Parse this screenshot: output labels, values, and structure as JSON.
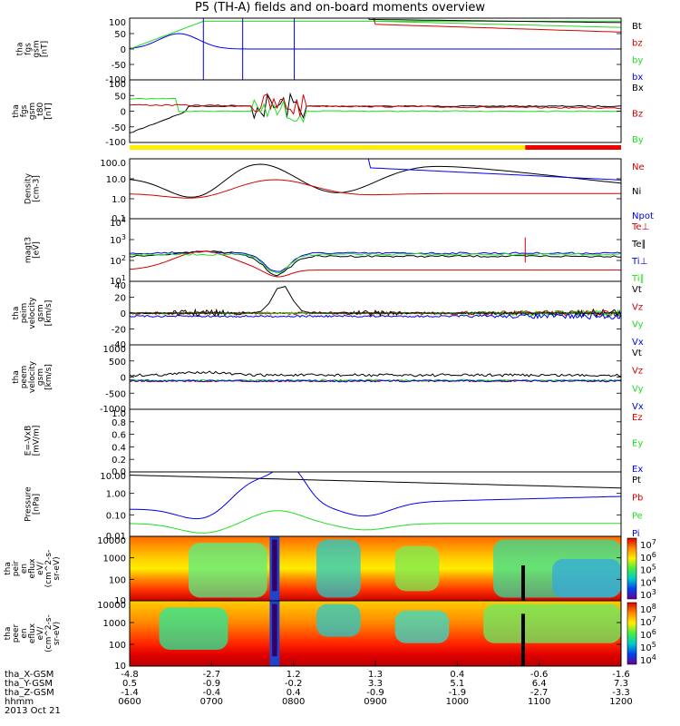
{
  "title": "P5 (TH-A) fields and on-board moments overview",
  "colors": {
    "black": "#000000",
    "red": "#d40000",
    "green": "#22dd22",
    "blue": "#0000ee",
    "yellow": "#ffee00",
    "bar_red": "#ee0000"
  },
  "chart_data": {
    "type": "line",
    "time_ticks": [
      "0600",
      "0700",
      "0800",
      "0900",
      "1000",
      "1100",
      "1200"
    ],
    "time_range": [
      "0600",
      "1200"
    ],
    "date": "2013 Oct 21",
    "footer": {
      "rows": [
        {
          "label": "tha_X-GSM",
          "values": [
            "-4.8",
            "-2.7",
            "1.2",
            "1.3",
            "0.4",
            "-0.6",
            "-1.6"
          ]
        },
        {
          "label": "tha_Y-GSM",
          "values": [
            "0.5",
            "-0.9",
            "-0.2",
            "3.3",
            "5.1",
            "6.4",
            "7.3"
          ]
        },
        {
          "label": "tha_Z-GSM",
          "values": [
            "-1.4",
            "-0.4",
            "0.4",
            "-0.9",
            "-1.9",
            "-2.7",
            "-3.3"
          ]
        },
        {
          "label": "hhmm",
          "values": [
            "0600",
            "0700",
            "0800",
            "0900",
            "1000",
            "1100",
            "1200"
          ]
        }
      ],
      "date_label": "2013 Oct 21"
    },
    "panels": [
      {
        "id": "fgs",
        "ylabel": [
          "tha",
          "fgs",
          "gsm",
          "[nT]"
        ],
        "ylim": [
          -100,
          100
        ],
        "yticks": [
          "100",
          "50",
          "0",
          "-50",
          "-100"
        ],
        "legend": [
          {
            "name": "Bt",
            "color": "black"
          },
          {
            "name": "bz",
            "color": "red"
          },
          {
            "name": "by",
            "color": "green"
          },
          {
            "name": "bx",
            "color": "blue"
          }
        ]
      },
      {
        "id": "fgs_mgse",
        "ylabel": [
          "tha",
          "fgs",
          "gsm",
          "_t80",
          "[nT]"
        ],
        "ylim": [
          -100,
          100
        ],
        "yticks": [
          "100",
          "50",
          "0",
          "-50",
          "-100"
        ],
        "legend": [
          {
            "name": "Bx",
            "color": "black"
          },
          {
            "name": "Bz",
            "color": "red"
          },
          {
            "name": "By",
            "color": "green"
          }
        ]
      },
      {
        "id": "density",
        "ylabel": [
          "Density",
          "[cm-3]"
        ],
        "scale": "log",
        "yticks": [
          "100.0",
          "10.0",
          "1.0",
          "0.1"
        ],
        "legend": [
          {
            "name": "Ne",
            "color": "red"
          },
          {
            "name": "Ni",
            "color": "black"
          },
          {
            "name": "Npot",
            "color": "blue"
          }
        ]
      },
      {
        "id": "temp",
        "ylabel": [
          "magt3",
          "[eV]"
        ],
        "scale": "log",
        "yticks": [
          "10^4",
          "10^3",
          "10^2",
          "10^1"
        ],
        "legend": [
          {
            "name": "Te⊥",
            "color": "red"
          },
          {
            "name": "Te∥",
            "color": "black"
          },
          {
            "name": "Ti⊥",
            "color": "blue"
          },
          {
            "name": "Ti∥",
            "color": "green"
          }
        ]
      },
      {
        "id": "peim",
        "ylabel": [
          "tha",
          "peim",
          "velocity",
          "gsm",
          "[km/s]"
        ],
        "ylim": [
          -40,
          40
        ],
        "yticks": [
          "40",
          "20",
          "0",
          "-20",
          "-40"
        ],
        "legend": [
          {
            "name": "Vt",
            "color": "black"
          },
          {
            "name": "Vz",
            "color": "red"
          },
          {
            "name": "Vy",
            "color": "green"
          },
          {
            "name": "Vx",
            "color": "blue"
          }
        ]
      },
      {
        "id": "peem",
        "ylabel": [
          "tha",
          "peem",
          "velocity",
          "gsm",
          "[km/s]"
        ],
        "ylim": [
          -1000,
          1000
        ],
        "yticks": [
          "1000",
          "500",
          "0",
          "-500",
          "-1000"
        ],
        "legend": [
          {
            "name": "Vt",
            "color": "black"
          },
          {
            "name": "Vz",
            "color": "red"
          },
          {
            "name": "Vy",
            "color": "green"
          },
          {
            "name": "Vx",
            "color": "blue"
          }
        ]
      },
      {
        "id": "efield",
        "ylabel": [
          "E=-VxB",
          "[mV/m]"
        ],
        "ylim": [
          0,
          1
        ],
        "yticks": [
          "1.0",
          "0.8",
          "0.6",
          "0.4",
          "0.2",
          "0.0"
        ],
        "legend": [
          {
            "name": "Ez",
            "color": "red"
          },
          {
            "name": "Ey",
            "color": "green"
          },
          {
            "name": "Ex",
            "color": "blue"
          }
        ]
      },
      {
        "id": "pressure",
        "ylabel": [
          "Pressure",
          "[nPa]"
        ],
        "scale": "log",
        "yticks": [
          "10.00",
          "1.00",
          "0.10",
          "0.01"
        ],
        "legend": [
          {
            "name": "Pt",
            "color": "black"
          },
          {
            "name": "Pb",
            "color": "red"
          },
          {
            "name": "Pe",
            "color": "green"
          },
          {
            "name": "Pi",
            "color": "blue"
          }
        ]
      },
      {
        "id": "peir",
        "ylabel": [
          "tha",
          "peir",
          "en",
          "eflux",
          "eV/",
          "(cm^2-s-",
          "sr-eV)"
        ],
        "scale": "log",
        "yticks": [
          "10000",
          "1000",
          "100",
          "10"
        ],
        "colorbar": [
          "10^7",
          "10^6",
          "10^5",
          "10^4",
          "10^3"
        ]
      },
      {
        "id": "peer",
        "ylabel": [
          "tha",
          "peer",
          "en",
          "eflux",
          "eV/",
          "(cm^2-s-",
          "sr-eV)"
        ],
        "scale": "log",
        "yticks": [
          "10000",
          "1000",
          "100",
          "10"
        ],
        "colorbar": [
          "10^8",
          "10^7",
          "10^6",
          "10^5",
          "10^4"
        ]
      }
    ]
  }
}
